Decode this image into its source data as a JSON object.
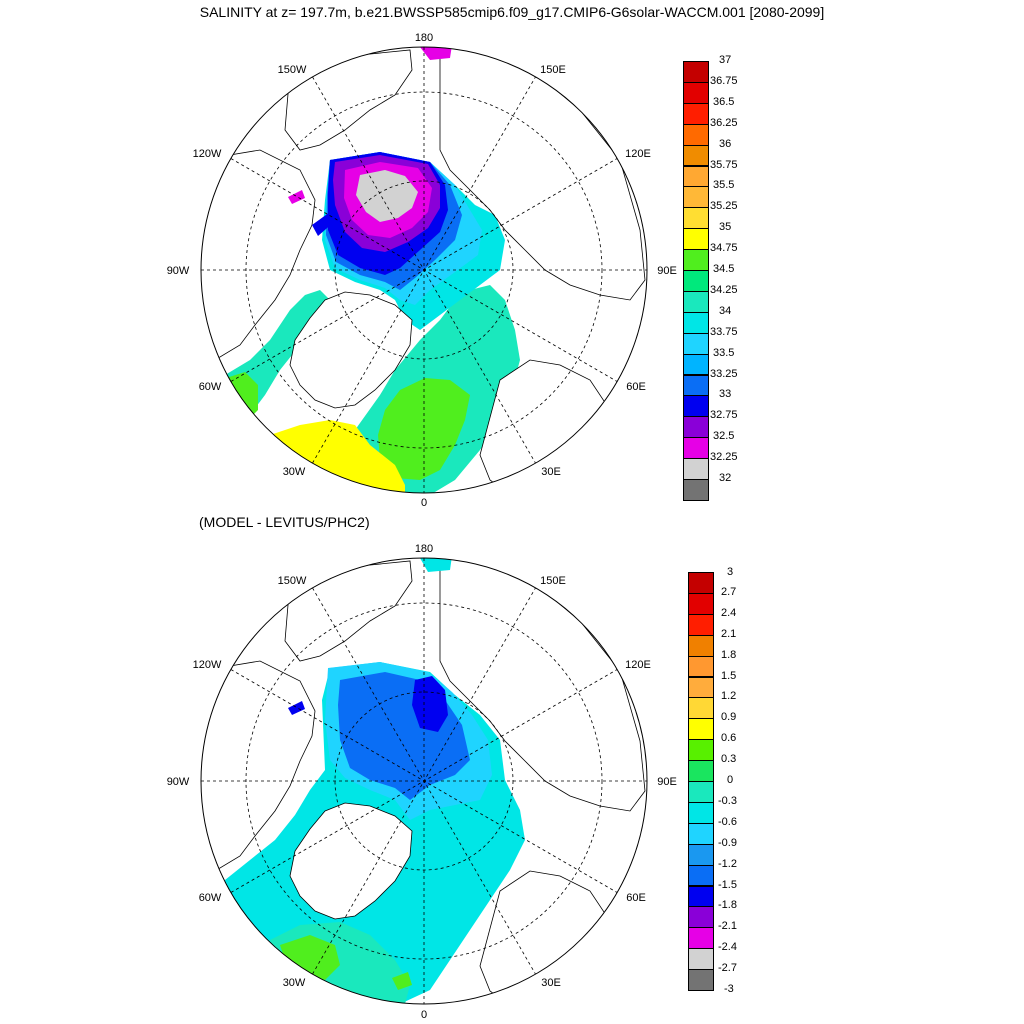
{
  "title": "SALINITY at z= 197.7m, b.e21.BWSSP585cmip6.f09_g17.CMIP6-G6solar-WACCM.001 [2080-2099]",
  "subtitle": "(MODEL - LEVITUS/PHC2)",
  "lon_labels": {
    "l180": "180",
    "l150e": "150E",
    "l120e": "120E",
    "l90e": "90E",
    "l60e": "60E",
    "l30e": "30E",
    "l0": "0",
    "l30w": "30W",
    "l60w": "60W",
    "l90w": "90W",
    "l120w": "120W",
    "l150w": "150W"
  },
  "colorbar1": {
    "labels": [
      "37",
      "36.75",
      "36.5",
      "36.25",
      "36",
      "35.75",
      "35.5",
      "35.25",
      "35",
      "34.75",
      "34.5",
      "34.25",
      "34",
      "33.75",
      "33.5",
      "33.25",
      "33",
      "32.75",
      "32.5",
      "32.25",
      "32"
    ],
    "colors": [
      "#c40000",
      "#e20000",
      "#ff1e00",
      "#ff6a00",
      "#f08c00",
      "#ffa832",
      "#ffb837",
      "#ffde32",
      "#ffff00",
      "#50ee1e",
      "#00e97c",
      "#1ae8bd",
      "#00e6e6",
      "#1fd4ff",
      "#00b4ff",
      "#0a6ef5",
      "#0000f0",
      "#8a00d8",
      "#e600e6",
      "#d2d2d2",
      "#737373"
    ]
  },
  "colorbar2": {
    "labels": [
      "3",
      "2.7",
      "2.4",
      "2.1",
      "1.8",
      "1.5",
      "1.2",
      "0.9",
      "0.6",
      "0.3",
      "0",
      "-0.3",
      "-0.6",
      "-0.9",
      "-1.2",
      "-1.5",
      "-1.8",
      "-2.1",
      "-2.4",
      "-2.7",
      "-3"
    ],
    "colors": [
      "#c40000",
      "#e20000",
      "#ff1e00",
      "#f08000",
      "#ff9830",
      "#ffac3c",
      "#ffd835",
      "#ffff00",
      "#58f000",
      "#1ae55f",
      "#1ae8bd",
      "#00e6e6",
      "#1fd4ff",
      "#1a98f0",
      "#0a6ef5",
      "#0000f0",
      "#8a00d8",
      "#e600e6",
      "#d2d2d2",
      "#737373"
    ]
  },
  "map_colors": {
    "land": "#ffffff",
    "s_yellow": "#ffff00",
    "s_green": "#50ee1e",
    "s_teal": "#1ae8bd",
    "s_cyan": "#00e6e6",
    "s_lightblue": "#1fd4ff",
    "s_blue": "#0a6ef5",
    "s_deepblue": "#0000f0",
    "s_purple": "#8a00d8",
    "s_magenta": "#e600e6",
    "s_grey": "#d2d2d2"
  }
}
